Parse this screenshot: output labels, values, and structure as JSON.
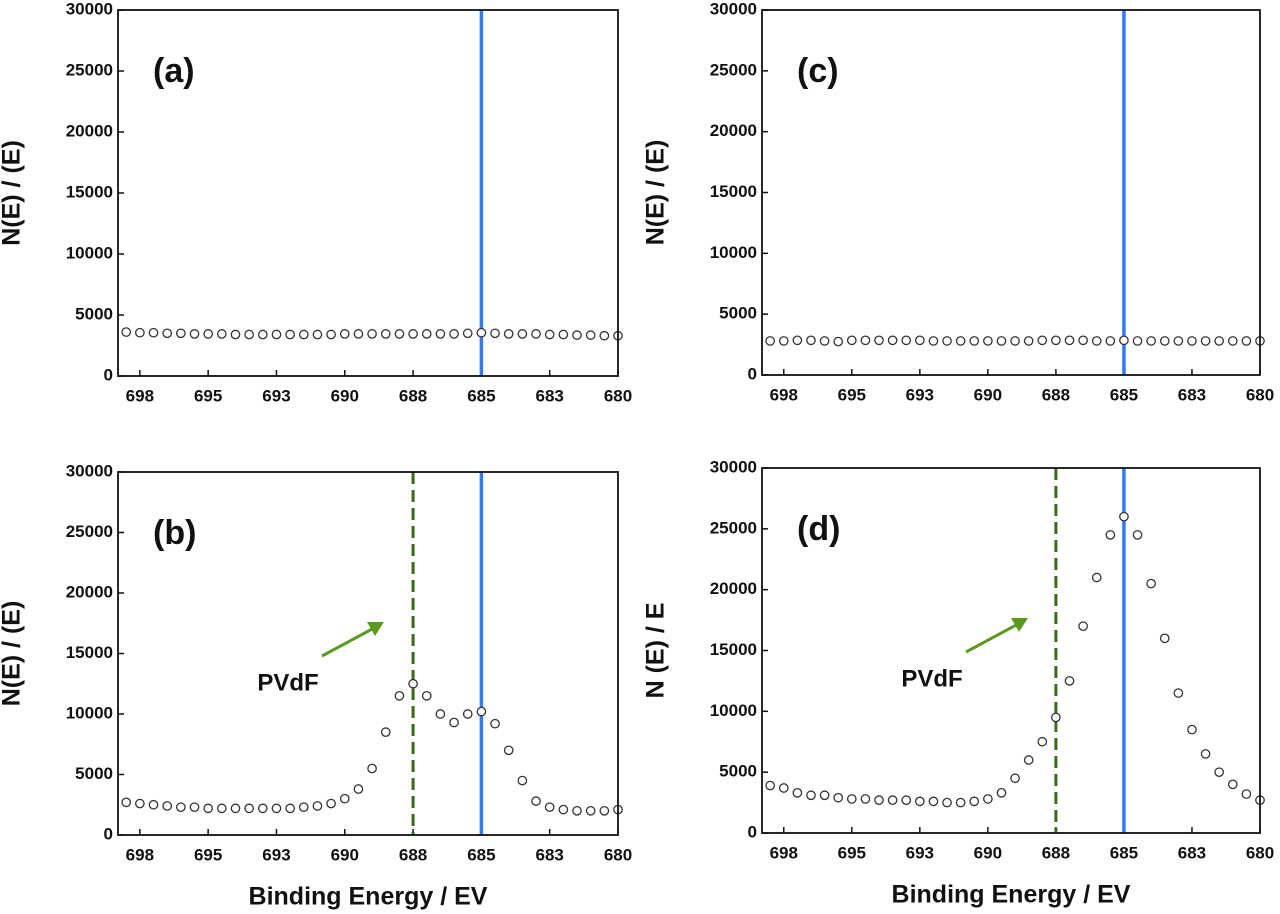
{
  "chart_data": [
    {
      "type": "scatter",
      "label": "(a)",
      "y_label": "N(E) / (E)",
      "x": [
        698,
        697.5,
        697,
        696.5,
        696,
        695.5,
        695,
        694.5,
        694,
        693.5,
        693,
        692.5,
        692,
        691.5,
        691,
        690.5,
        690,
        689.5,
        689,
        688.5,
        688,
        687.5,
        687,
        686.5,
        686,
        685.5,
        685,
        684.5,
        684,
        683.5,
        683,
        682.5,
        682,
        681.5,
        681,
        680.5,
        680
      ],
      "series": [
        {
          "values": [
            3600,
            3550,
            3550,
            3500,
            3500,
            3450,
            3450,
            3450,
            3400,
            3400,
            3400,
            3400,
            3400,
            3400,
            3400,
            3400,
            3450,
            3450,
            3450,
            3450,
            3450,
            3450,
            3450,
            3450,
            3450,
            3500,
            3550,
            3500,
            3450,
            3450,
            3450,
            3400,
            3400,
            3350,
            3350,
            3300,
            3300
          ]
        }
      ],
      "vlines": [
        {
          "value": 685,
          "color": "#2f7bf5",
          "style": "solid"
        }
      ],
      "xlim": [
        698.3,
        680
      ],
      "ylim": [
        0,
        30000
      ],
      "xticks": [
        {
          "value": 697.5,
          "label": "698"
        },
        695,
        {
          "value": 692.5,
          "label": "693"
        },
        690,
        {
          "value": 687.5,
          "label": "688"
        },
        685,
        {
          "value": 682.5,
          "label": "683"
        },
        680
      ],
      "yticks": [
        0,
        5000,
        10000,
        15000,
        20000,
        25000,
        30000
      ]
    },
    {
      "type": "scatter",
      "label": "(b)",
      "y_label": "N(E) / (E)",
      "x_label": "Binding Energy / EV",
      "annotation": "PVdF",
      "x": [
        698,
        697.5,
        697,
        696.5,
        696,
        695.5,
        695,
        694.5,
        694,
        693.5,
        693,
        692.5,
        692,
        691.5,
        691,
        690.5,
        690,
        689.5,
        689,
        688.5,
        688,
        687.5,
        687,
        686.5,
        686,
        685.5,
        685,
        684.5,
        684,
        683.5,
        683,
        682.5,
        682,
        681.5,
        681,
        680.5,
        680
      ],
      "series": [
        {
          "values": [
            2700,
            2600,
            2500,
            2400,
            2300,
            2300,
            2200,
            2200,
            2200,
            2200,
            2200,
            2200,
            2200,
            2300,
            2400,
            2600,
            3000,
            3800,
            5500,
            8500,
            11500,
            12500,
            11500,
            10000,
            9300,
            10000,
            10200,
            9200,
            7000,
            4500,
            2800,
            2300,
            2100,
            2000,
            2000,
            2000,
            2100
          ]
        }
      ],
      "vlines": [
        {
          "value": 687.5,
          "color": "#3a6b1a",
          "style": "dashed"
        },
        {
          "value": 685,
          "color": "#2f7bf5",
          "style": "solid"
        }
      ],
      "xlim": [
        698.3,
        680
      ],
      "ylim": [
        0,
        30000
      ],
      "xticks": [
        {
          "value": 697.5,
          "label": "698"
        },
        695,
        {
          "value": 692.5,
          "label": "693"
        },
        690,
        {
          "value": 687.5,
          "label": "688"
        },
        685,
        {
          "value": 682.5,
          "label": "683"
        },
        680
      ],
      "yticks": [
        0,
        5000,
        10000,
        15000,
        20000,
        25000,
        30000
      ]
    },
    {
      "type": "scatter",
      "label": "(c)",
      "y_label": "N(E) / (E)",
      "x": [
        698,
        697.5,
        697,
        696.5,
        696,
        695.5,
        695,
        694.5,
        694,
        693.5,
        693,
        692.5,
        692,
        691.5,
        691,
        690.5,
        690,
        689.5,
        689,
        688.5,
        688,
        687.5,
        687,
        686.5,
        686,
        685.5,
        685,
        684.5,
        684,
        683.5,
        683,
        682.5,
        682,
        681.5,
        681,
        680.5,
        680
      ],
      "series": [
        {
          "values": [
            2800,
            2800,
            2850,
            2850,
            2800,
            2750,
            2850,
            2850,
            2850,
            2850,
            2850,
            2850,
            2800,
            2800,
            2800,
            2800,
            2800,
            2800,
            2800,
            2800,
            2850,
            2850,
            2850,
            2850,
            2800,
            2800,
            2850,
            2800,
            2800,
            2800,
            2800,
            2800,
            2800,
            2800,
            2800,
            2800,
            2800
          ]
        }
      ],
      "vlines": [
        {
          "value": 685,
          "color": "#2f7bf5",
          "style": "solid"
        }
      ],
      "xlim": [
        698.3,
        680
      ],
      "ylim": [
        0,
        30000
      ],
      "xticks": [
        {
          "value": 697.5,
          "label": "698"
        },
        695,
        {
          "value": 692.5,
          "label": "693"
        },
        690,
        {
          "value": 687.5,
          "label": "688"
        },
        685,
        {
          "value": 682.5,
          "label": "683"
        },
        680
      ],
      "yticks": [
        0,
        5000,
        10000,
        15000,
        20000,
        25000,
        30000
      ]
    },
    {
      "type": "scatter",
      "label": "(d)",
      "y_label": "N (E) / E",
      "x_label": "Binding Energy / EV",
      "annotation": "PVdF",
      "x": [
        698,
        697.5,
        697,
        696.5,
        696,
        695.5,
        695,
        694.5,
        694,
        693.5,
        693,
        692.5,
        692,
        691.5,
        691,
        690.5,
        690,
        689.5,
        689,
        688.5,
        688,
        687.5,
        687,
        686.5,
        686,
        685.5,
        685,
        684.5,
        684,
        683.5,
        683,
        682.5,
        682,
        681.5,
        681,
        680.5,
        680
      ],
      "series": [
        {
          "values": [
            3900,
            3700,
            3300,
            3100,
            3100,
            2900,
            2800,
            2800,
            2700,
            2700,
            2700,
            2600,
            2600,
            2500,
            2500,
            2600,
            2800,
            3300,
            4500,
            6000,
            7500,
            9500,
            12500,
            17000,
            21000,
            24500,
            26000,
            24500,
            20500,
            16000,
            11500,
            8500,
            6500,
            5000,
            4000,
            3200,
            2700
          ]
        }
      ],
      "vlines": [
        {
          "value": 687.5,
          "color": "#3a6b1a",
          "style": "dashed"
        },
        {
          "value": 685,
          "color": "#2f7bf5",
          "style": "solid"
        }
      ],
      "xlim": [
        698.3,
        680
      ],
      "ylim": [
        0,
        30000
      ],
      "xticks": [
        {
          "value": 697.5,
          "label": "698"
        },
        695,
        {
          "value": 692.5,
          "label": "693"
        },
        690,
        {
          "value": 687.5,
          "label": "688"
        },
        685,
        {
          "value": 682.5,
          "label": "683"
        },
        680
      ],
      "yticks": [
        0,
        5000,
        10000,
        15000,
        20000,
        25000,
        30000
      ]
    }
  ]
}
